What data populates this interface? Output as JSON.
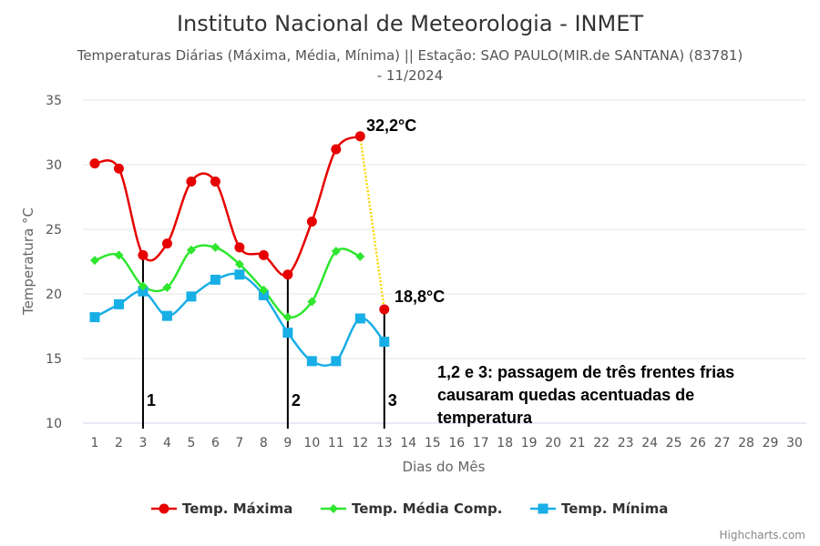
{
  "title": "Instituto Nacional de Meteorologia - INMET",
  "subtitle_lines": [
    "Temperaturas Diárias (Máxima, Média, Mínima) || Estação: SAO PAULO(MIR.de SANTANA) (83781)",
    "- 11/2024"
  ],
  "credits": "Highcharts.com",
  "chart_data": {
    "type": "line",
    "xlabel": "Dias do Mês",
    "ylabel": "Temperatura °C",
    "x": [
      1,
      2,
      3,
      4,
      5,
      6,
      7,
      8,
      9,
      10,
      11,
      12,
      13,
      14,
      15,
      16,
      17,
      18,
      19,
      20,
      21,
      22,
      23,
      24,
      25,
      26,
      27,
      28,
      29,
      30
    ],
    "ylim": [
      10,
      35
    ],
    "yticks": [
      10,
      15,
      20,
      25,
      30,
      35
    ],
    "grid": true,
    "legend_position": "bottom-center",
    "series": [
      {
        "name": "Temp. Máxima",
        "color": "#e60000",
        "marker": "circle",
        "x": [
          1,
          2,
          3,
          4,
          5,
          6,
          7,
          8,
          9,
          10,
          11,
          12
        ],
        "values": [
          30.1,
          29.7,
          23.0,
          23.9,
          28.7,
          28.7,
          23.6,
          23.0,
          21.5,
          25.6,
          31.2,
          32.2
        ]
      },
      {
        "name": "Temp. Média Comp.",
        "color": "#2ee62e",
        "marker": "diamond",
        "x": [
          1,
          2,
          3,
          4,
          5,
          6,
          7,
          8,
          9,
          10,
          11,
          12
        ],
        "values": [
          22.6,
          23.0,
          20.6,
          20.5,
          23.4,
          23.6,
          22.3,
          20.3,
          18.2,
          19.4,
          23.3,
          22.9
        ]
      },
      {
        "name": "Temp. Mínima",
        "color": "#18aee6",
        "marker": "square",
        "x": [
          1,
          2,
          3,
          4,
          5,
          6,
          7,
          8,
          9,
          10,
          11,
          12,
          13
        ],
        "values": [
          18.2,
          19.2,
          20.2,
          18.3,
          19.8,
          21.1,
          21.5,
          19.9,
          17.0,
          14.8,
          14.8,
          18.1,
          16.3
        ]
      }
    ],
    "extra_point": {
      "x": 13,
      "y": 18.8,
      "color": "#e60000"
    },
    "drop_line": {
      "from": [
        12,
        32.2
      ],
      "to": [
        13,
        18.8
      ],
      "color": "#ffd700"
    },
    "markers": [
      {
        "x": 3,
        "label": "1"
      },
      {
        "x": 9,
        "label": "2"
      },
      {
        "x": 13,
        "label": "3"
      }
    ],
    "annotations": {
      "max_value_label": "32,2°C",
      "min_value_label": "18,8°C",
      "note_lines": [
        "1,2 e 3: passagem de três frentes frias",
        "causaram quedas acentuadas de",
        "temperatura"
      ]
    }
  }
}
